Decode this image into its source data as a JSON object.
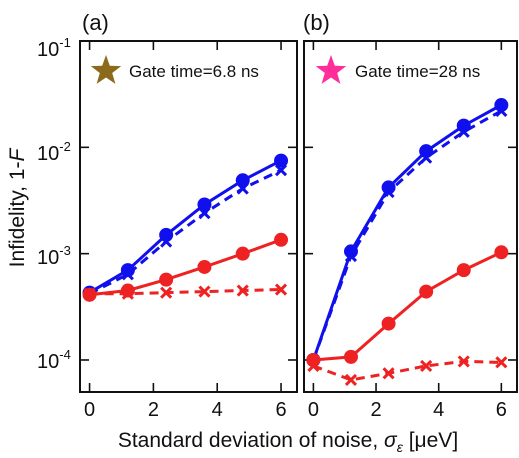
{
  "chart_data": [
    {
      "type": "line",
      "panel_label": "(a)",
      "annotation": "Gate time=6.8 ns",
      "marker_color": "#8b6a1c",
      "x": [
        0,
        1.2,
        2.4,
        3.6,
        4.8,
        6.0
      ],
      "yscale": "log",
      "ylim": [
        5e-05,
        0.1
      ],
      "xlim": [
        -0.3,
        6.5
      ],
      "series": [
        {
          "color": "#1010ee",
          "marker": "circle",
          "line": "solid",
          "values": [
            0.00043,
            0.0007,
            0.0015,
            0.0029,
            0.0049,
            0.0075
          ]
        },
        {
          "color": "#1010ee",
          "marker": "x",
          "line": "dashed",
          "values": [
            0.00042,
            0.00064,
            0.0013,
            0.0024,
            0.0041,
            0.0061
          ]
        },
        {
          "color": "#ee2222",
          "marker": "circle",
          "line": "solid",
          "values": [
            0.00041,
            0.00045,
            0.00057,
            0.00075,
            0.001,
            0.00135
          ]
        },
        {
          "color": "#ee2222",
          "marker": "x",
          "line": "dashed",
          "values": [
            0.00042,
            0.00042,
            0.00043,
            0.00044,
            0.00045,
            0.00046
          ]
        }
      ]
    },
    {
      "type": "line",
      "panel_label": "(b)",
      "annotation": "Gate time=28 ns",
      "marker_color": "#ff2d9a",
      "x": [
        0,
        1.2,
        2.4,
        3.6,
        4.8,
        6.0
      ],
      "yscale": "log",
      "ylim": [
        5e-05,
        0.1
      ],
      "xlim": [
        -0.3,
        6.5
      ],
      "series": [
        {
          "color": "#1010ee",
          "marker": "circle",
          "line": "solid",
          "values": [
            0.0001,
            0.00105,
            0.0042,
            0.0092,
            0.016,
            0.025
          ]
        },
        {
          "color": "#1010ee",
          "marker": "x",
          "line": "dashed",
          "values": [
            0.0001,
            0.00095,
            0.0038,
            0.008,
            0.014,
            0.022
          ]
        },
        {
          "color": "#ee2222",
          "marker": "circle",
          "line": "solid",
          "values": [
            0.0001,
            0.000107,
            0.00022,
            0.00044,
            0.0007,
            0.00103
          ]
        },
        {
          "color": "#ee2222",
          "marker": "x",
          "line": "dashed",
          "values": [
            8.8e-05,
            6.5e-05,
            7.5e-05,
            8.8e-05,
            9.7e-05,
            9.5e-05
          ]
        }
      ]
    }
  ],
  "axes": {
    "ylabel_prefix": "Infidelity, 1-",
    "ylabel_var": "F",
    "xlabel_prefix": "Standard deviation of noise, ",
    "xlabel_var": "σ",
    "xlabel_sub": "ε",
    "xlabel_unit": " [μeV]",
    "xticks": [
      "0",
      "2",
      "4",
      "6"
    ],
    "yticks": [
      {
        "base": "10",
        "exp": "-1"
      },
      {
        "base": "10",
        "exp": "-2"
      },
      {
        "base": "10",
        "exp": "-3"
      },
      {
        "base": "10",
        "exp": "-4"
      }
    ]
  }
}
